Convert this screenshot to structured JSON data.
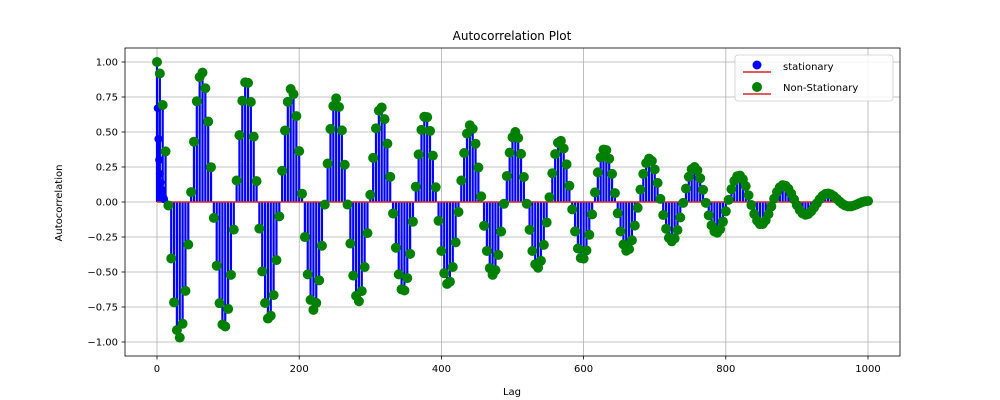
{
  "chart_data": {
    "type": "stem",
    "title": "Autocorrelation Plot",
    "xlabel": "Lag",
    "ylabel": "Autocorrelation",
    "xlim": [
      -45,
      1045
    ],
    "ylim": [
      -1.1,
      1.1
    ],
    "xticks": [
      0,
      200,
      400,
      600,
      800,
      1000
    ],
    "yticks": [
      -1.0,
      -0.75,
      -0.5,
      -0.25,
      0.0,
      0.25,
      0.5,
      0.75,
      1.0
    ],
    "xtick_labels": [
      "0",
      "200",
      "400",
      "600",
      "800",
      "1000"
    ],
    "ytick_labels": [
      "−1.00",
      "−0.75",
      "−0.50",
      "−0.25",
      "0.00",
      "0.25",
      "0.50",
      "0.75",
      "1.00"
    ],
    "grid": true,
    "legend_position": "upper right",
    "series": [
      {
        "name": "stationary",
        "color": "#0000ff",
        "baseline_color": "#d62728",
        "lags": [
          0,
          1,
          2,
          3,
          4,
          5,
          6,
          7,
          8,
          9,
          10
        ],
        "values": [
          1.0,
          0.67,
          0.45,
          0.3,
          0.2,
          0.14,
          0.09,
          0.06,
          0.04,
          0.03,
          0.02
        ]
      },
      {
        "name": "Non-Stationary",
        "color": "#008000",
        "baseline_color": "#d62728",
        "lag_max": 1000,
        "lag_step": 4,
        "period": 63,
        "amplitude_envelope": {
          "lag": [
            0,
            32,
            63,
            95,
            126,
            158,
            189,
            221,
            252,
            284,
            315,
            347,
            378,
            410,
            441,
            473,
            504,
            536,
            567,
            599,
            630,
            662,
            693,
            725,
            756,
            788,
            819,
            851,
            882,
            914,
            945,
            977,
            1000
          ],
          "amplitude": [
            1.0,
            0.97,
            0.93,
            0.9,
            0.87,
            0.84,
            0.81,
            0.77,
            0.74,
            0.71,
            0.68,
            0.64,
            0.62,
            0.59,
            0.55,
            0.52,
            0.5,
            0.47,
            0.44,
            0.41,
            0.38,
            0.35,
            0.31,
            0.28,
            0.25,
            0.22,
            0.19,
            0.16,
            0.12,
            0.09,
            0.06,
            0.03,
            0.01
          ]
        }
      }
    ]
  }
}
